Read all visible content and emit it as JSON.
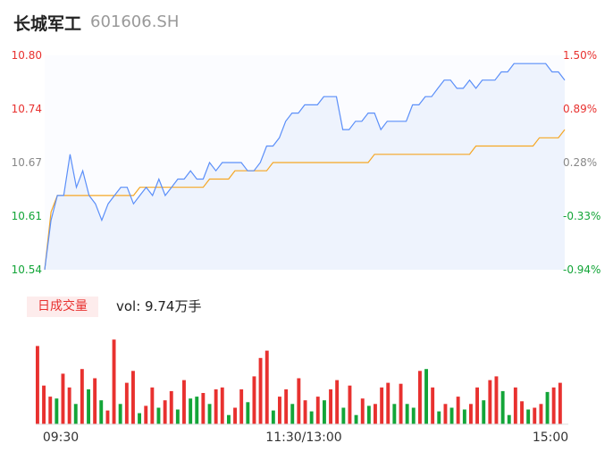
{
  "header": {
    "stock_name": "长城军工",
    "stock_code": "601606.SH"
  },
  "volume_panel": {
    "tab_label": "日成交量",
    "vol_text": "vol: 9.74万手"
  },
  "colors": {
    "price_line": "#5b8ff9",
    "avg_line": "#f5a623",
    "up": "#e8312f",
    "down": "#13a538",
    "grid": "#eeeeee",
    "axis_text": "#555555"
  },
  "chart_data": {
    "type": "line",
    "title": "",
    "ylim": [
      10.54,
      10.8
    ],
    "pct_range": [
      -0.94,
      1.5
    ],
    "y_ticks_left": [
      "10.80",
      "10.74",
      "10.67",
      "10.61",
      "10.54"
    ],
    "y_ticks_right": [
      "1.50%",
      "0.89%",
      "0.28%",
      "-0.33%",
      "-0.94%"
    ],
    "x_ticks": [
      "09:30",
      "11:30/13:00",
      "15:00"
    ],
    "series": [
      {
        "key": "price",
        "values": [
          10.54,
          10.6,
          10.63,
          10.63,
          10.68,
          10.64,
          10.66,
          10.63,
          10.62,
          10.6,
          10.62,
          10.63,
          10.64,
          10.64,
          10.62,
          10.63,
          10.64,
          10.63,
          10.65,
          10.63,
          10.64,
          10.65,
          10.65,
          10.66,
          10.65,
          10.65,
          10.67,
          10.66,
          10.67,
          10.67,
          10.67,
          10.67,
          10.66,
          10.66,
          10.67,
          10.69,
          10.69,
          10.7,
          10.72,
          10.73,
          10.73,
          10.74,
          10.74,
          10.74,
          10.75,
          10.75,
          10.75,
          10.71,
          10.71,
          10.72,
          10.72,
          10.73,
          10.73,
          10.71,
          10.72,
          10.72,
          10.72,
          10.72,
          10.74,
          10.74,
          10.75,
          10.75,
          10.76,
          10.77,
          10.77,
          10.76,
          10.76,
          10.77,
          10.76,
          10.77,
          10.77,
          10.77,
          10.78,
          10.78,
          10.79,
          10.79,
          10.79,
          10.79,
          10.79,
          10.79,
          10.78,
          10.78,
          10.77
        ]
      },
      {
        "key": "average",
        "values": [
          10.54,
          10.61,
          10.63,
          10.63,
          10.63,
          10.63,
          10.63,
          10.63,
          10.63,
          10.63,
          10.63,
          10.63,
          10.63,
          10.63,
          10.63,
          10.64,
          10.64,
          10.64,
          10.64,
          10.64,
          10.64,
          10.64,
          10.64,
          10.64,
          10.64,
          10.64,
          10.65,
          10.65,
          10.65,
          10.65,
          10.66,
          10.66,
          10.66,
          10.66,
          10.66,
          10.66,
          10.67,
          10.67,
          10.67,
          10.67,
          10.67,
          10.67,
          10.67,
          10.67,
          10.67,
          10.67,
          10.67,
          10.67,
          10.67,
          10.67,
          10.67,
          10.67,
          10.68,
          10.68,
          10.68,
          10.68,
          10.68,
          10.68,
          10.68,
          10.68,
          10.68,
          10.68,
          10.68,
          10.68,
          10.68,
          10.68,
          10.68,
          10.68,
          10.69,
          10.69,
          10.69,
          10.69,
          10.69,
          10.69,
          10.69,
          10.69,
          10.69,
          10.69,
          10.7,
          10.7,
          10.7,
          10.7,
          10.71
        ]
      }
    ],
    "volume": {
      "ylim": [
        0,
        100
      ],
      "values": [
        85,
        42,
        30,
        28,
        55,
        40,
        22,
        60,
        38,
        50,
        26,
        15,
        92,
        22,
        45,
        58,
        12,
        20,
        40,
        18,
        26,
        36,
        16,
        48,
        28,
        30,
        34,
        22,
        38,
        40,
        10,
        18,
        38,
        24,
        52,
        72,
        80,
        15,
        30,
        38,
        22,
        50,
        26,
        14,
        30,
        26,
        38,
        48,
        18,
        42,
        10,
        28,
        20,
        22,
        40,
        45,
        22,
        44,
        22,
        18,
        58,
        60,
        40,
        14,
        22,
        18,
        30,
        16,
        22,
        40,
        26,
        48,
        52,
        36,
        10,
        40,
        25,
        16,
        18,
        22,
        35,
        40,
        45
      ],
      "up": [
        true,
        true,
        true,
        false,
        true,
        true,
        false,
        true,
        false,
        true,
        false,
        true,
        true,
        false,
        true,
        true,
        false,
        true,
        true,
        false,
        true,
        true,
        false,
        true,
        false,
        false,
        true,
        false,
        true,
        true,
        false,
        true,
        true,
        false,
        true,
        true,
        true,
        false,
        true,
        true,
        false,
        true,
        true,
        false,
        true,
        false,
        true,
        true,
        false,
        true,
        false,
        true,
        false,
        true,
        true,
        true,
        false,
        true,
        false,
        false,
        true,
        false,
        true,
        false,
        true,
        false,
        true,
        false,
        true,
        true,
        false,
        true,
        true,
        false,
        false,
        true,
        true,
        false,
        true,
        true,
        false,
        true,
        true
      ]
    }
  }
}
